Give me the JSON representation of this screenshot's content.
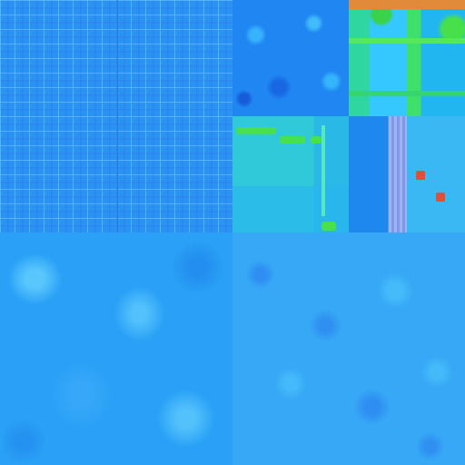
{
  "colors": {
    "grid_base": "#2b93f3",
    "speckle_base": "#1f86f2",
    "green_accent": "#49e04e",
    "orange_accent": "#e08a3a",
    "column_lavender": "#8aa6ef",
    "marble_base": "#2aa1f6",
    "mottled_base": "#36a8f5"
  },
  "tiles": [
    {
      "name": "tiled-squares-texture"
    },
    {
      "name": "blue-speckle-texture"
    },
    {
      "name": "green-mix-texture"
    },
    {
      "name": "panel-texture"
    },
    {
      "name": "column-texture"
    },
    {
      "name": "marble-texture"
    },
    {
      "name": "mottled-texture"
    }
  ]
}
